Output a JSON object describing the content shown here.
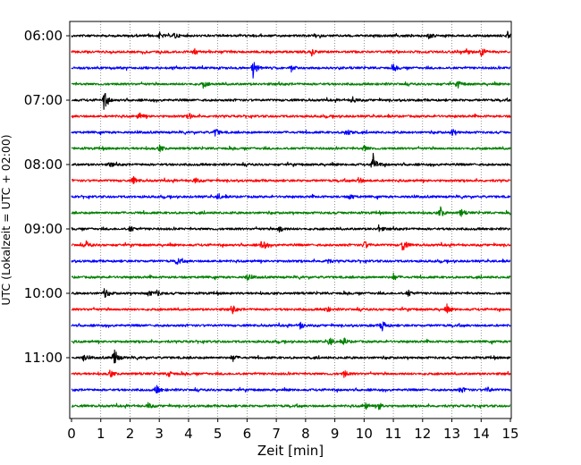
{
  "chart_data": {
    "type": "line",
    "title": "",
    "xlabel": "Zeit  [min]",
    "ylabel": "UTC (Lokalzeit = UTC + 02:00)",
    "xlim": [
      0,
      15
    ],
    "xticks": [
      "0",
      "1",
      "2",
      "3",
      "4",
      "5",
      "6",
      "7",
      "8",
      "9",
      "10",
      "11",
      "12",
      "13",
      "14",
      "15"
    ],
    "ytick_labels": [
      "06:00",
      "07:00",
      "08:00",
      "09:00",
      "10:00",
      "11:00"
    ],
    "grid": "vertical dotted",
    "row_minutes": 15,
    "row_colors": [
      "#000000",
      "#ff0000",
      "#0000ff",
      "#008000"
    ],
    "rows": [
      {
        "start": "06:00",
        "events": [
          [
            3.0,
            0.3
          ],
          [
            3.5,
            0.35
          ],
          [
            12.2,
            0.3
          ],
          [
            14.9,
            0.3
          ]
        ]
      },
      {
        "start": "06:15",
        "events": [
          [
            4.2,
            0.3
          ],
          [
            8.2,
            0.3
          ],
          [
            14.0,
            0.45
          ],
          [
            13.5,
            0.3
          ]
        ]
      },
      {
        "start": "06:30",
        "events": [
          [
            6.2,
            0.9
          ],
          [
            7.5,
            0.3
          ],
          [
            11.0,
            0.3
          ]
        ]
      },
      {
        "start": "06:45",
        "events": [
          [
            4.5,
            0.3
          ],
          [
            13.2,
            0.3
          ]
        ]
      },
      {
        "start": "07:00",
        "events": [
          [
            1.1,
            1.0
          ],
          [
            9.6,
            0.35
          ]
        ]
      },
      {
        "start": "07:15",
        "events": [
          [
            2.3,
            0.4
          ],
          [
            4.0,
            0.3
          ]
        ]
      },
      {
        "start": "07:30",
        "events": [
          [
            4.9,
            0.4
          ],
          [
            9.4,
            0.45
          ],
          [
            13.0,
            0.3
          ]
        ]
      },
      {
        "start": "07:45",
        "events": [
          [
            3.0,
            0.3
          ],
          [
            10.0,
            0.3
          ]
        ]
      },
      {
        "start": "08:00",
        "events": [
          [
            10.3,
            1.0
          ],
          [
            1.3,
            0.25
          ]
        ]
      },
      {
        "start": "08:15",
        "events": [
          [
            2.1,
            0.4
          ],
          [
            4.2,
            0.3
          ],
          [
            9.8,
            0.35
          ]
        ]
      },
      {
        "start": "08:30",
        "events": [
          [
            5.0,
            0.3
          ],
          [
            9.5,
            0.3
          ]
        ]
      },
      {
        "start": "08:45",
        "events": [
          [
            12.6,
            0.5
          ],
          [
            13.3,
            0.4
          ]
        ]
      },
      {
        "start": "09:00",
        "events": [
          [
            7.1,
            0.4
          ],
          [
            2.0,
            0.3
          ],
          [
            10.5,
            0.3
          ]
        ]
      },
      {
        "start": "09:15",
        "events": [
          [
            6.5,
            0.7
          ],
          [
            11.3,
            0.7
          ],
          [
            10.0,
            0.4
          ],
          [
            0.5,
            0.3
          ]
        ]
      },
      {
        "start": "09:30",
        "events": [
          [
            3.6,
            0.35
          ],
          [
            8.7,
            0.3
          ]
        ]
      },
      {
        "start": "09:45",
        "events": [
          [
            6.0,
            0.3
          ],
          [
            11.0,
            0.3
          ]
        ]
      },
      {
        "start": "10:00",
        "events": [
          [
            1.1,
            0.5
          ],
          [
            2.6,
            0.35
          ],
          [
            2.9,
            0.3
          ],
          [
            11.5,
            0.3
          ]
        ]
      },
      {
        "start": "10:15",
        "events": [
          [
            5.5,
            0.35
          ],
          [
            12.8,
            0.4
          ],
          [
            8.7,
            0.3
          ]
        ]
      },
      {
        "start": "10:30",
        "events": [
          [
            10.6,
            0.6
          ],
          [
            7.8,
            0.4
          ]
        ]
      },
      {
        "start": "10:45",
        "events": [
          [
            8.8,
            0.45
          ],
          [
            9.3,
            0.3
          ]
        ]
      },
      {
        "start": "11:00",
        "events": [
          [
            1.45,
            1.0
          ],
          [
            5.5,
            0.35
          ],
          [
            0.4,
            0.3
          ]
        ]
      },
      {
        "start": "11:15",
        "events": [
          [
            1.3,
            0.35
          ],
          [
            3.3,
            0.35
          ],
          [
            9.3,
            0.35
          ]
        ]
      },
      {
        "start": "11:30",
        "events": [
          [
            2.9,
            0.55
          ],
          [
            13.3,
            0.35
          ],
          [
            14.2,
            0.3
          ]
        ]
      },
      {
        "start": "11:45",
        "events": [
          [
            10.0,
            0.45
          ],
          [
            10.5,
            0.35
          ],
          [
            2.6,
            0.3
          ]
        ]
      }
    ]
  }
}
